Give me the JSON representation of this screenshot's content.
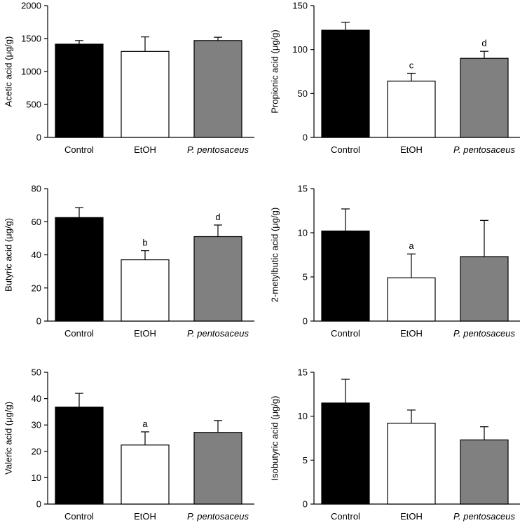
{
  "chart_data": [
    {
      "type": "bar",
      "title": "",
      "xlabel": "",
      "ylabel": "Acetic acid (μg/g)",
      "ylim": [
        0,
        2000
      ],
      "yticks": [
        0,
        500,
        1000,
        1500,
        2000
      ],
      "categories": [
        "Control",
        "EtOH",
        "P. pentosaceus"
      ],
      "values": [
        1415,
        1305,
        1470
      ],
      "errors": [
        55,
        220,
        50
      ],
      "colors": [
        "#000000",
        "#ffffff",
        "#808080"
      ],
      "sig_labels": [
        "",
        "",
        ""
      ]
    },
    {
      "type": "bar",
      "title": "",
      "xlabel": "",
      "ylabel": "Propionic acid (μg/g)",
      "ylim": [
        0,
        150
      ],
      "yticks": [
        0,
        50,
        100,
        150
      ],
      "categories": [
        "Control",
        "EtOH",
        "P. pentosaceus"
      ],
      "values": [
        122,
        64,
        90
      ],
      "errors": [
        9,
        9,
        8
      ],
      "colors": [
        "#000000",
        "#ffffff",
        "#808080"
      ],
      "sig_labels": [
        "",
        "c",
        "d"
      ]
    },
    {
      "type": "bar",
      "title": "",
      "xlabel": "",
      "ylabel": "Butyric acid (μg/g)",
      "ylim": [
        0,
        80
      ],
      "yticks": [
        0,
        20,
        40,
        60,
        80
      ],
      "categories": [
        "Control",
        "EtOH",
        "P. pentosaceus"
      ],
      "values": [
        62.5,
        37,
        51
      ],
      "errors": [
        6,
        5.5,
        7
      ],
      "colors": [
        "#000000",
        "#ffffff",
        "#808080"
      ],
      "sig_labels": [
        "",
        "b",
        "d"
      ]
    },
    {
      "type": "bar",
      "title": "",
      "xlabel": "",
      "ylabel": "2-metylbutic acid (μg/g)",
      "ylim": [
        0,
        15
      ],
      "yticks": [
        0,
        5,
        10,
        15
      ],
      "categories": [
        "Control",
        "EtOH",
        "P. pentosaceus"
      ],
      "values": [
        10.2,
        4.9,
        7.3
      ],
      "errors": [
        2.5,
        2.7,
        4.1
      ],
      "colors": [
        "#000000",
        "#ffffff",
        "#808080"
      ],
      "sig_labels": [
        "",
        "a",
        ""
      ]
    },
    {
      "type": "bar",
      "title": "",
      "xlabel": "",
      "ylabel": "Valeric acid (μg/g)",
      "ylim": [
        0,
        50
      ],
      "yticks": [
        0,
        10,
        20,
        30,
        40,
        50
      ],
      "categories": [
        "Control",
        "EtOH",
        "P. pentosaceus"
      ],
      "values": [
        36.8,
        22.4,
        27.2
      ],
      "errors": [
        5.2,
        5,
        4.5
      ],
      "colors": [
        "#000000",
        "#ffffff",
        "#808080"
      ],
      "sig_labels": [
        "",
        "a",
        ""
      ]
    },
    {
      "type": "bar",
      "title": "",
      "xlabel": "",
      "ylabel": "Isobutyric acid (μg/g)",
      "ylim": [
        0,
        15
      ],
      "yticks": [
        0,
        5,
        10,
        15
      ],
      "categories": [
        "Control",
        "EtOH",
        "P. pentosaceus"
      ],
      "values": [
        11.5,
        9.2,
        7.3
      ],
      "errors": [
        2.7,
        1.5,
        1.5
      ],
      "colors": [
        "#000000",
        "#ffffff",
        "#808080"
      ],
      "sig_labels": [
        "",
        "",
        ""
      ]
    }
  ]
}
